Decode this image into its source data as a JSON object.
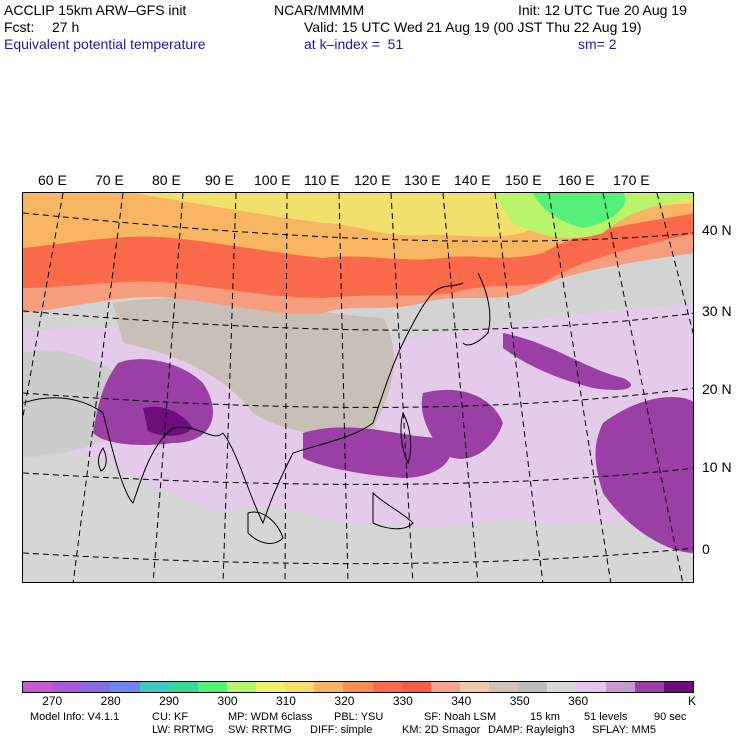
{
  "header": {
    "model": "ACCLIP 15km ARW–GFS init",
    "center": "NCAR/MMMM",
    "init": "Init: 12 UTC Tue 20 Aug 19",
    "fcst_label": "Fcst:",
    "fcst_value": "27 h",
    "valid": "Valid: 15 UTC Wed 21 Aug 19 (00 JST Thu 22 Aug 19)",
    "field": "Equivalent potential temperature",
    "level": "at k–index =  51",
    "smooth": "sm= 2"
  },
  "map": {
    "lon_labels": [
      "60 E",
      "70 E",
      "80 E",
      "90 E",
      "100 E",
      "110 E",
      "120 E",
      "130 E",
      "140 E",
      "150 E",
      "160 E",
      "170 E"
    ],
    "lat_labels": [
      "40 N",
      "30 N",
      "20 N",
      "10 N",
      "0"
    ]
  },
  "legend": {
    "colors": [
      "#c85bd0",
      "#a95ad8",
      "#8a6be6",
      "#6e86f0",
      "#3fc7c3",
      "#36d99a",
      "#55f07a",
      "#b8f56a",
      "#eef36a",
      "#f9dc6e",
      "#f8b562",
      "#fb8f52",
      "#fb6a4a",
      "#f55a4c",
      "#f6a48e",
      "#f0c8ae",
      "#cfc2b8",
      "#bdbdbd",
      "#d9d9d9",
      "#e2c8ea",
      "#c79ad3",
      "#9a3fa6",
      "#6c0f7a"
    ],
    "tick_labels": [
      "270",
      "280",
      "290",
      "300",
      "310",
      "320",
      "330",
      "340",
      "350",
      "360"
    ],
    "unit": "K"
  },
  "footer": {
    "line1": [
      "Model Info: V4.1.1",
      "CU: KF",
      "MP: WDM 6class",
      "PBL: YSU",
      "SF: Noah LSM",
      "15 km",
      "51 levels",
      "90 sec"
    ],
    "line2": [
      "LW: RRTMG",
      "SW: RRTMG",
      "DIFF: simple",
      "KM: 2D Smagor",
      "DAMP: Rayleigh3",
      "SFLAY: MM5"
    ]
  }
}
